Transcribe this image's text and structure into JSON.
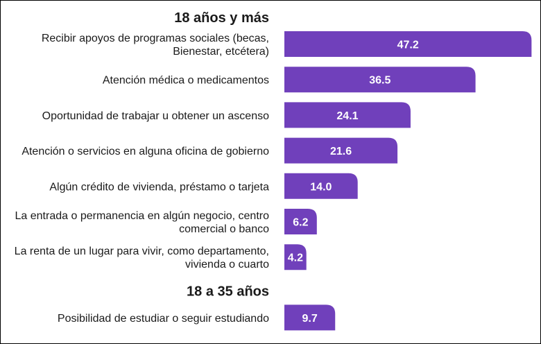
{
  "chart_data": {
    "type": "bar",
    "orientation": "horizontal",
    "sections": [
      {
        "heading": "18 años y más",
        "items": [
          {
            "label": [
              "Recibir apoyos de programas sociales (becas,",
              "Bienestar, etcétera)"
            ],
            "value": 47.2,
            "display": "47.2"
          },
          {
            "label": [
              "Atención médica o medicamentos"
            ],
            "value": 36.5,
            "display": "36.5"
          },
          {
            "label": [
              "Oportunidad de trabajar u obtener un ascenso"
            ],
            "value": 24.1,
            "display": "24.1"
          },
          {
            "label": [
              "Atención o servicios en alguna oficina de gobierno"
            ],
            "value": 21.6,
            "display": "21.6"
          },
          {
            "label": [
              "Algún crédito de vivienda, préstamo o tarjeta"
            ],
            "value": 14.0,
            "display": "14.0"
          },
          {
            "label": [
              "La entrada o permanencia en algún negocio, centro",
              "comercial o banco"
            ],
            "value": 6.2,
            "display": "6.2"
          },
          {
            "label": [
              "La renta de un lugar para vivir, como departamento,",
              "vivienda o cuarto"
            ],
            "value": 4.2,
            "display": "4.2"
          }
        ]
      },
      {
        "heading": "18 a 35 años",
        "items": [
          {
            "label": [
              "Posibilidad de estudiar o seguir estudiando"
            ],
            "value": 9.7,
            "display": "9.7"
          }
        ]
      }
    ],
    "bar_color": "#7040bb",
    "value_label_color": "#ffffff",
    "text_color": "#1a1a1a"
  }
}
